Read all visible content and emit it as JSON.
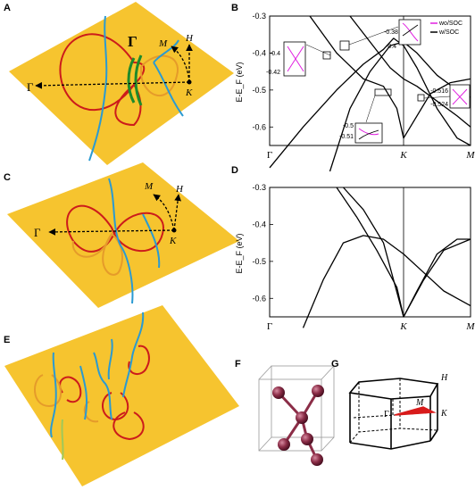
{
  "panel_labels": {
    "A": "A",
    "B": "B",
    "C": "C",
    "D": "D",
    "E": "E",
    "F": "F",
    "G": "G"
  },
  "panelA": {
    "gamma": "Γ",
    "gamma_big": "Γ",
    "M": "M",
    "H": "H",
    "K": "K"
  },
  "panelC": {
    "gamma": "Γ",
    "M": "M",
    "H": "H",
    "K": "K"
  },
  "panelG": {
    "H": "H",
    "K": "K",
    "M": "M",
    "gamma": "Γ"
  },
  "colors": {
    "plane": "#f6c42f",
    "red_loop": "#cc1b1b",
    "blue_line": "#2a9ad2",
    "green_line": "#1e8a2a",
    "atom": "#8b2d47",
    "soc_magenta": "#e020e0"
  },
  "chart_data": [
    {
      "type": "line",
      "panel": "B",
      "ylabel": "E-E_F (eV)",
      "ylim": [
        -0.65,
        -0.3
      ],
      "yticks": [
        "-0.3",
        "-0.4",
        "-0.5",
        "-0.6"
      ],
      "ytick_values": [
        -0.3,
        -0.4,
        -0.5,
        -0.6
      ],
      "xticks": [
        "Γ",
        "K",
        "M"
      ],
      "legend": {
        "position": "top-right",
        "entries": [
          "wo/SOC",
          "w/SOC"
        ]
      },
      "series": [
        {
          "name": "w/SOC",
          "x": [
            0,
            0.5,
            1,
            1.4,
            1.7,
            1.85,
            2,
            2.2,
            2.5,
            2.8,
            3
          ],
          "y": [
            -0.71,
            -0.6,
            -0.5,
            -0.43,
            -0.39,
            -0.36,
            -0.38,
            -0.44,
            -0.55,
            -0.63,
            -0.65
          ]
        },
        {
          "x": [
            0.9,
            1.2,
            1.5,
            1.8,
            2,
            2.2,
            2.5,
            2.8,
            3
          ],
          "y": [
            -0.72,
            -0.55,
            -0.45,
            -0.38,
            -0.37,
            -0.4,
            -0.46,
            -0.5,
            -0.52
          ]
        },
        {
          "x": [
            0.6,
            1,
            1.4,
            1.7,
            1.9,
            2,
            2.1,
            2.4,
            2.7,
            3
          ],
          "y": [
            -0.3,
            -0.4,
            -0.47,
            -0.49,
            -0.55,
            -0.63,
            -0.6,
            -0.51,
            -0.48,
            -0.47
          ]
        },
        {
          "x": [
            1.2,
            1.5,
            1.8,
            2,
            2.2,
            2.5,
            2.8,
            3
          ],
          "y": [
            -0.3,
            -0.37,
            -0.44,
            -0.47,
            -0.49,
            -0.53,
            -0.57,
            -0.6
          ]
        }
      ],
      "inset_labels": {
        "i1": [
          "-0.4",
          "-0.42"
        ],
        "i2": [
          "-0.38",
          "-0.4"
        ],
        "i3": [
          "-0.5",
          "-0.51"
        ],
        "i4": [
          "-0.516",
          "-0.524"
        ]
      }
    },
    {
      "type": "line",
      "panel": "D",
      "ylabel": "E-E_F (eV)",
      "ylim": [
        -0.65,
        -0.3
      ],
      "yticks": [
        "-0.3",
        "-0.4",
        "-0.5",
        "-0.6"
      ],
      "ytick_values": [
        -0.3,
        -0.4,
        -0.5,
        -0.6
      ],
      "xticks": [
        "Γ",
        "K",
        "M"
      ],
      "series": [
        {
          "x": [
            0.5,
            0.8,
            1.1,
            1.4,
            1.7,
            2,
            2.3,
            2.6,
            3
          ],
          "y": [
            -0.68,
            -0.55,
            -0.45,
            -0.43,
            -0.44,
            -0.48,
            -0.53,
            -0.58,
            -0.62
          ]
        },
        {
          "x": [
            1,
            1.3,
            1.6,
            1.9,
            2,
            2.2,
            2.5,
            2.8,
            3
          ],
          "y": [
            -0.3,
            -0.38,
            -0.47,
            -0.57,
            -0.65,
            -0.58,
            -0.48,
            -0.44,
            -0.44
          ]
        },
        {
          "x": [
            1.1,
            1.4,
            1.7,
            2,
            2.3,
            2.6,
            3
          ],
          "y": [
            -0.3,
            -0.36,
            -0.45,
            -0.65,
            -0.55,
            -0.47,
            -0.44
          ]
        }
      ]
    }
  ]
}
